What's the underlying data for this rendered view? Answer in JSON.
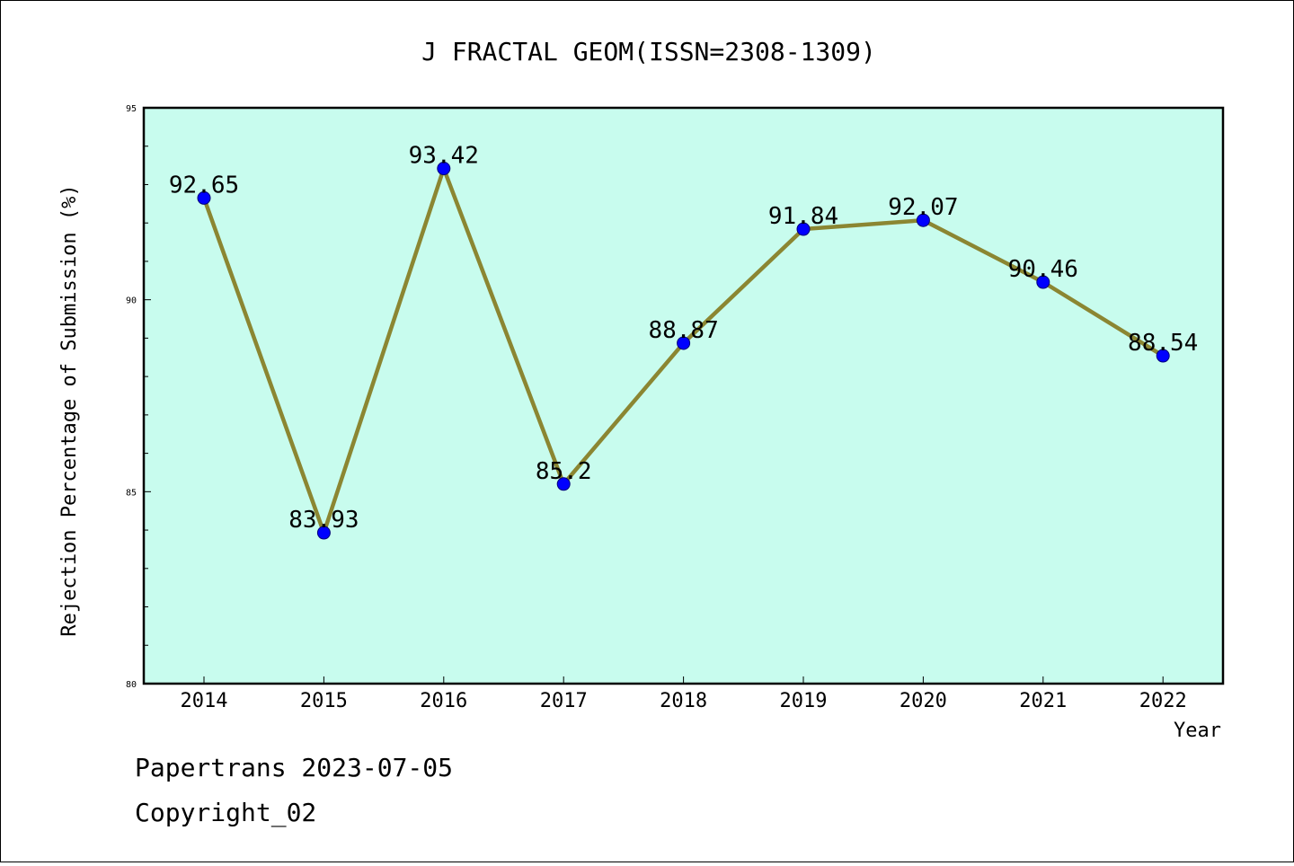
{
  "chart_data": {
    "type": "line",
    "title": "J FRACTAL GEOM(ISSN=2308-1309)",
    "xlabel": "Year",
    "ylabel": "Rejection Percentage of Submission (%)",
    "categories": [
      "2014",
      "2015",
      "2016",
      "2017",
      "2018",
      "2019",
      "2020",
      "2021",
      "2022"
    ],
    "series": [
      {
        "values": [
          92.65,
          83.93,
          93.42,
          85.2,
          88.87,
          91.84,
          92.07,
          90.46,
          88.54
        ],
        "labels": [
          "92.65",
          "83.93",
          "93.42",
          "85.2",
          "88.87",
          "91.84",
          "92.07",
          "90.46",
          "88.54"
        ]
      }
    ],
    "ylim": [
      80,
      95
    ],
    "yticks": [
      "80",
      "85",
      "90",
      "95"
    ],
    "grid": false,
    "colors": {
      "plot_background": "#c8fcee",
      "line": "#8b8632",
      "marker": "#0000ff"
    }
  },
  "footer": {
    "line1": "Papertrans 2023-07-05",
    "line2": "Copyright_02"
  }
}
